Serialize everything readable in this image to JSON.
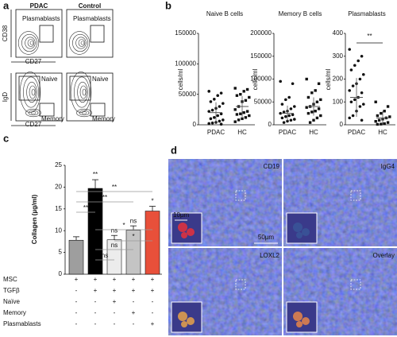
{
  "panels": {
    "a": "a",
    "b": "b",
    "c": "c",
    "d": "d"
  },
  "flow": {
    "columns": [
      "PDAC",
      "Control"
    ],
    "top_y_axis": "CD38",
    "top_x_axis": "CD27",
    "top_gate": "Plasmablasts",
    "bottom_y_axis": "IgD",
    "bottom_x_axis": "CD27",
    "bottom_gates": [
      "Naive",
      "Memory"
    ]
  },
  "chart_data": [
    {
      "type": "strip",
      "title": "Naive B cells",
      "ylabel": "cells/ml",
      "categories": [
        "PDAC",
        "HC"
      ],
      "values": [
        [
          55000,
          52000,
          48000,
          42000,
          38000,
          35000,
          30000,
          27000,
          24000,
          22000,
          18000,
          15000,
          12000,
          10000,
          8000,
          6000,
          4000,
          3000,
          2000,
          1000
        ],
        [
          60000,
          58000,
          55000,
          50000,
          48000,
          45000,
          40000,
          38000,
          30000,
          25000,
          22000,
          20000,
          18000,
          17000,
          15000,
          12000,
          10000,
          8000,
          5000
        ]
      ],
      "means": [
        20000,
        30000
      ],
      "errors": [
        17000,
        17000
      ],
      "ylim": [
        0,
        150000
      ],
      "yticks": [
        0,
        50000,
        100000,
        150000
      ]
    },
    {
      "type": "strip",
      "title": "Memory B cells",
      "ylabel": "cells/ml",
      "categories": [
        "PDAC",
        "HC"
      ],
      "values": [
        [
          95000,
          90000,
          60000,
          55000,
          45000,
          40000,
          35000,
          30000,
          28000,
          25000,
          22000,
          20000,
          18000,
          15000,
          12000,
          10000,
          8000,
          5000
        ],
        [
          100000,
          90000,
          75000,
          70000,
          60000,
          55000,
          50000,
          45000,
          40000,
          38000,
          35000,
          30000,
          28000,
          25000,
          20000,
          15000,
          10000,
          5000
        ]
      ],
      "means": [
        25000,
        40000
      ],
      "errors": [
        17000,
        20000
      ],
      "ylim": [
        0,
        200000
      ],
      "yticks": [
        0,
        50000,
        100000,
        150000,
        200000
      ]
    },
    {
      "type": "strip",
      "title": "Plasmablasts",
      "ylabel": "cells/ml",
      "categories": [
        "PDAC",
        "HC"
      ],
      "values": [
        [
          330,
          300,
          280,
          260,
          240,
          220,
          200,
          180,
          170,
          150,
          140,
          120,
          110,
          100,
          90,
          80,
          60,
          40,
          30,
          20
        ],
        [
          100,
          80,
          60,
          50,
          40,
          35,
          30,
          25,
          20,
          15,
          10,
          5,
          3,
          2
        ]
      ],
      "means": [
        120,
        30
      ],
      "errors": [
        85,
        30
      ],
      "ylim": [
        0,
        400
      ],
      "yticks": [
        0,
        100,
        200,
        300,
        400
      ],
      "annotation": "**"
    },
    {
      "type": "bar",
      "ylabel": "Collagen (µg/ml)",
      "values": [
        7.8,
        19.7,
        7.9,
        10.1,
        14.5
      ],
      "errors": [
        0.8,
        2.0,
        1.0,
        1.0,
        1.1
      ],
      "colors": [
        "#9e9e9e",
        "#000000",
        "#ececec",
        "#c4c4c4",
        "#e8503a"
      ],
      "annotations": [
        null,
        "**",
        "ns",
        "ns",
        "*"
      ],
      "comparisons": [
        "**",
        "**",
        "**",
        "*",
        "*",
        "ns",
        "ns"
      ],
      "conditions": [
        {
          "label": "MSC",
          "signs": [
            "+",
            "+",
            "+",
            "+",
            "+"
          ]
        },
        {
          "label": "TGFβ",
          "signs": [
            "-",
            "+",
            "+",
            "+",
            "+"
          ]
        },
        {
          "label": "Naïve",
          "signs": [
            "-",
            "-",
            "+",
            "-",
            "-"
          ]
        },
        {
          "label": "Memory",
          "signs": [
            "-",
            "-",
            "-",
            "+",
            "-"
          ]
        },
        {
          "label": "Plasmablasts",
          "signs": [
            "-",
            "-",
            "-",
            "-",
            "+"
          ]
        }
      ],
      "ylim": [
        0,
        25
      ],
      "yticks": [
        0,
        5,
        10,
        15,
        20,
        25
      ]
    }
  ],
  "microscopy": {
    "channels": [
      "CD19",
      "IgG4",
      "LOXL2",
      "Overlay"
    ],
    "inset_scale": "10µm",
    "scale": "50µm"
  }
}
